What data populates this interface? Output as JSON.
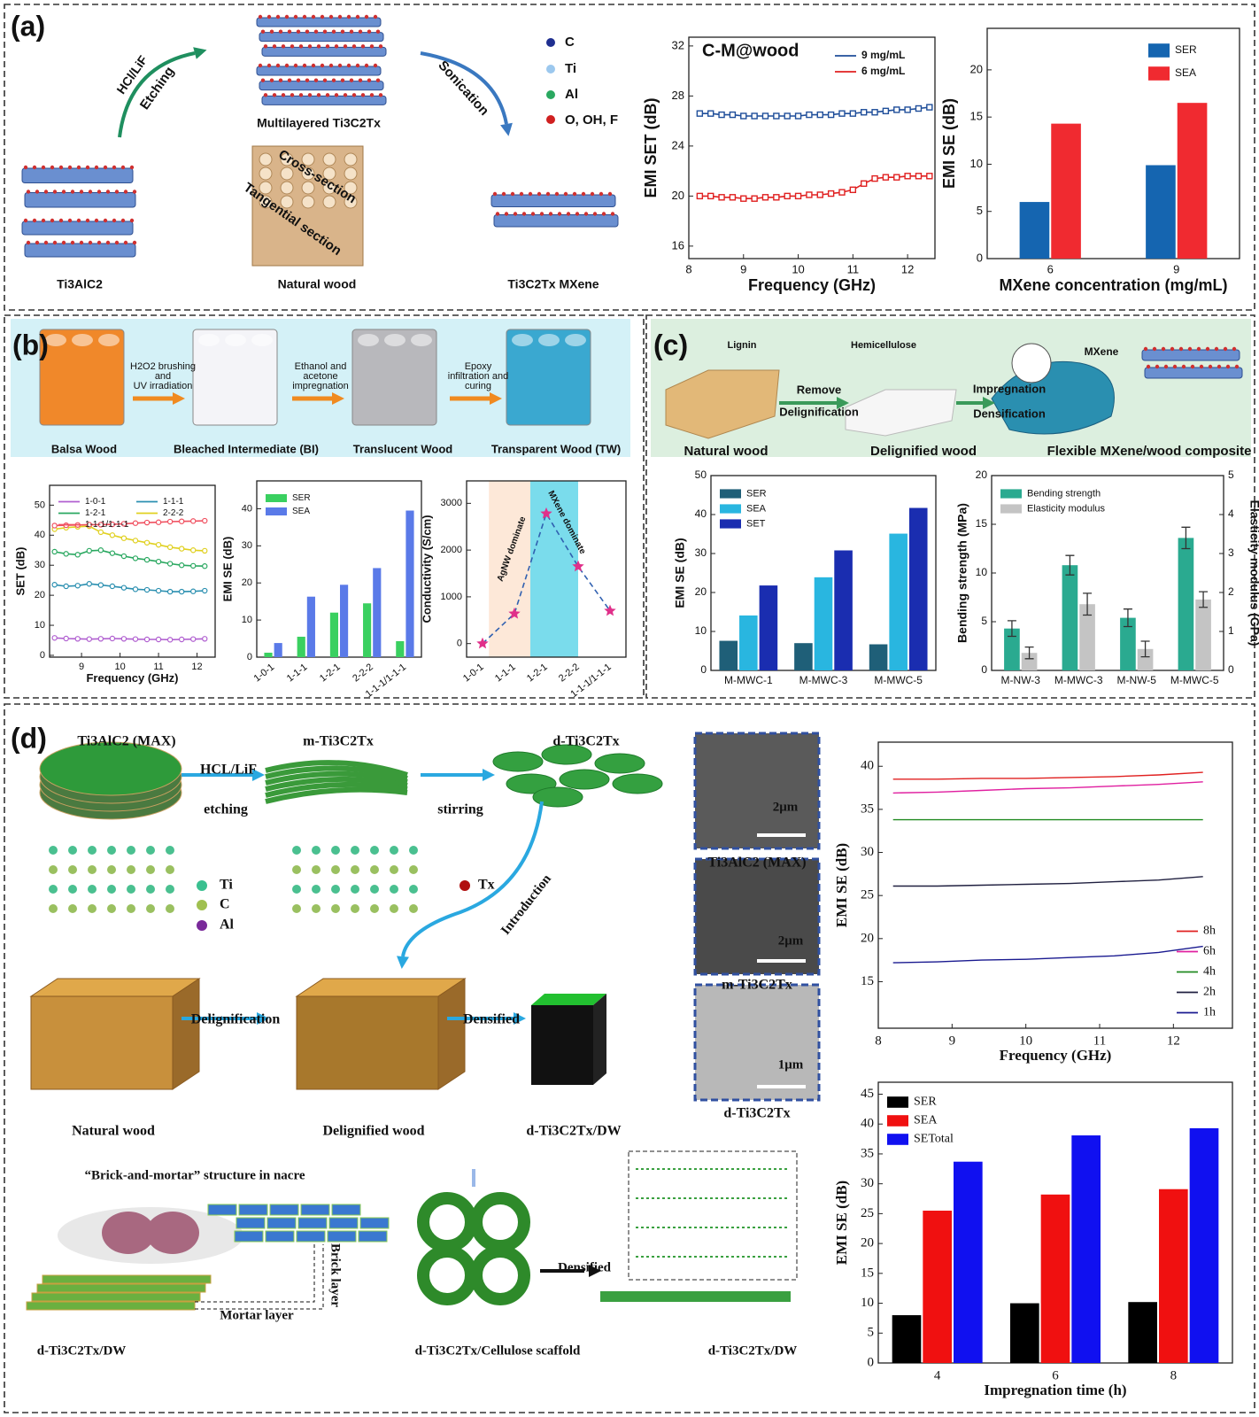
{
  "panels": {
    "a": {
      "label": "(a)",
      "texts": [
        "HCl/LiF",
        "Etching",
        "Multilayered Ti3C2Tx",
        "Sonication",
        "C",
        "Ti",
        "Al",
        "O, OH, F",
        "Ti3AlC2",
        "Cross-section",
        "Tangential section",
        "Natural wood",
        "Ti3C2Tx MXene"
      ]
    },
    "b": {
      "label": "(b)",
      "texts": [
        "H2O2 brushing",
        "and",
        "UV irradiation",
        "Ethanol and",
        "acetone",
        "impregnation",
        "Epoxy",
        "infiltration and",
        "curing",
        "Balsa Wood",
        "Bleached Intermediate (BI)",
        "Translucent Wood",
        "Transparent Wood (TW)"
      ]
    },
    "c": {
      "label": "(c)",
      "texts": [
        "Lignin",
        "Hemicellulose",
        "Remove",
        "Delignification",
        "Impregnation",
        "Densification",
        "MXene",
        "Natural wood",
        "Delignified wood",
        "Flexible MXene/wood composite"
      ]
    },
    "d": {
      "label": "(d)",
      "texts": [
        "Ti3AlC2 (MAX)",
        "m-Ti3C2Tx",
        "d-Ti3C2Tx",
        "HCL/LiF",
        "etching",
        "stirring",
        "Ti",
        "C",
        "Al",
        "Tx",
        "Introduction",
        "Natural wood",
        "Delignification",
        "Delignified wood",
        "Densified",
        "d-Ti3C2Tx/DW",
        "2μm",
        "Ti3AlC2 (MAX)",
        "2μm",
        "m-Ti3C2Tx",
        "1μm",
        "d-Ti3C2Tx",
        "“Brick-and-mortar” structure in nacre",
        "Brick layer",
        "Mortar layer",
        "d-Ti3C2Tx/DW",
        "d-Ti3C2Tx/Cellulose scaffold",
        "Densified",
        "d-Ti3C2Tx/DW"
      ]
    }
  },
  "chart_data": [
    {
      "type": "line",
      "title": "C-M@wood",
      "xlabel": "Frequency (GHz)",
      "ylabel": "EMI SET (dB)",
      "marker": "square",
      "legend": "upper right",
      "x": [
        8.2,
        8.4,
        8.6,
        8.8,
        9.0,
        9.2,
        9.4,
        9.6,
        9.8,
        10.0,
        10.2,
        10.4,
        10.6,
        10.8,
        11.0,
        11.2,
        11.4,
        11.6,
        11.8,
        12.0,
        12.2,
        12.4
      ],
      "xlim": [
        8,
        12.5
      ],
      "xticks": [
        8,
        9,
        10,
        11,
        12
      ],
      "ylim": [
        15,
        32.7
      ],
      "yticks": [
        16,
        20,
        24,
        28,
        32
      ],
      "series": [
        {
          "name": "9 mg/mL",
          "color": "#1f4e9a",
          "values": [
            26.6,
            26.6,
            26.5,
            26.5,
            26.4,
            26.4,
            26.4,
            26.4,
            26.4,
            26.4,
            26.5,
            26.5,
            26.5,
            26.6,
            26.6,
            26.7,
            26.7,
            26.8,
            26.9,
            26.9,
            27.0,
            27.1
          ]
        },
        {
          "name": "6 mg/mL",
          "color": "#e02020",
          "values": [
            20.0,
            20.0,
            19.9,
            19.9,
            19.8,
            19.8,
            19.9,
            19.9,
            20.0,
            20.0,
            20.1,
            20.1,
            20.2,
            20.3,
            20.5,
            21.0,
            21.4,
            21.5,
            21.5,
            21.6,
            21.6,
            21.6
          ]
        }
      ]
    },
    {
      "type": "bar",
      "xlabel": "MXene concentration (mg/mL)",
      "ylabel": "EMI SE (dB)",
      "legend": "upper right",
      "categories": [
        "6",
        "9"
      ],
      "ylim": [
        0,
        24.4
      ],
      "yticks": [
        0,
        5,
        10,
        15,
        20
      ],
      "series": [
        {
          "name": "SER",
          "color": "#1565b0",
          "values": [
            6.0,
            9.9
          ]
        },
        {
          "name": "SEA",
          "color": "#f02a30",
          "values": [
            14.3,
            16.5
          ]
        }
      ]
    },
    {
      "type": "line",
      "xlabel": "Frequency (GHz)",
      "ylabel": "SET (dB)",
      "marker": "circle",
      "legend": "upper left",
      "x": [
        8.3,
        8.6,
        8.9,
        9.2,
        9.5,
        9.8,
        10.1,
        10.4,
        10.7,
        11.0,
        11.3,
        11.6,
        11.9,
        12.2
      ],
      "xlim": [
        8.17,
        12.47
      ],
      "xticks": [
        9,
        10,
        11,
        12
      ],
      "ylim": [
        -0.6,
        56.6
      ],
      "yticks": [
        0,
        10,
        20,
        30,
        40,
        50
      ],
      "series": [
        {
          "name": "1-0-1",
          "color": "#b05fd0",
          "values": [
            5.8,
            5.6,
            5.5,
            5.4,
            5.5,
            5.6,
            5.5,
            5.4,
            5.3,
            5.3,
            5.2,
            5.3,
            5.4,
            5.5
          ]
        },
        {
          "name": "1-1-1",
          "color": "#2a8fb0",
          "values": [
            23.5,
            23.0,
            23.2,
            23.8,
            23.4,
            23.0,
            22.5,
            22.0,
            21.8,
            21.5,
            21.2,
            21.2,
            21.3,
            21.5
          ]
        },
        {
          "name": "1-2-1",
          "color": "#2aa860",
          "values": [
            34.5,
            33.8,
            33.5,
            34.8,
            35.0,
            34.0,
            33.0,
            32.3,
            31.8,
            31.2,
            30.5,
            30.0,
            29.8,
            29.7
          ]
        },
        {
          "name": "2-2-2",
          "color": "#e0d020",
          "values": [
            42.0,
            42.5,
            42.8,
            43.0,
            41.0,
            40.0,
            39.0,
            38.2,
            37.5,
            36.8,
            36.0,
            35.5,
            35.0,
            34.8
          ]
        },
        {
          "name": "1-1-1/1-1-1",
          "color": "#f05060",
          "values": [
            43.2,
            43.3,
            43.4,
            43.5,
            43.5,
            43.6,
            43.8,
            44.0,
            44.2,
            44.3,
            44.5,
            44.6,
            44.7,
            44.8
          ]
        }
      ]
    },
    {
      "type": "bar",
      "ylabel": "EMI SE (dB)",
      "legend": "upper left",
      "categories": [
        "1-0-1",
        "1-1-1",
        "1-2-1",
        "2-2-2",
        "1-1-1/1-1-1"
      ],
      "ylim": [
        0,
        47.5
      ],
      "yticks": [
        0,
        10,
        20,
        30,
        40
      ],
      "series": [
        {
          "name": "SER",
          "color": "#3ad060",
          "values": [
            1.2,
            5.5,
            12,
            14.5,
            4.3
          ]
        },
        {
          "name": "SEA",
          "color": "#5a7ae8",
          "values": [
            3.8,
            16.3,
            19.5,
            24,
            39.5
          ]
        }
      ]
    },
    {
      "type": "line",
      "ylabel": "Conductivity (S/cm)",
      "marker": "star",
      "dashed": true,
      "color": "#e0308a",
      "categories": [
        "1-0-1",
        "1-1-1",
        "1-2-1",
        "2-2-2",
        "1-1-1/1-1-1"
      ],
      "values": [
        0,
        640,
        2780,
        1650,
        700
      ],
      "ylim": [
        -290,
        3480
      ],
      "yticks": [
        0,
        1000,
        2000,
        3000
      ],
      "annotations": [
        "AgNW dominate",
        "MXene dominate"
      ]
    },
    {
      "type": "bar",
      "ylabel": "EMI SE (dB)",
      "legend": "upper left",
      "categories": [
        "M-MWC-1",
        "M-MWC-3",
        "M-MWC-5"
      ],
      "ylim": [
        0,
        50
      ],
      "yticks": [
        0,
        10,
        20,
        30,
        40,
        50
      ],
      "series": [
        {
          "name": "SER",
          "color": "#1f5f78",
          "values": [
            7.6,
            7.0,
            6.7
          ]
        },
        {
          "name": "SEA",
          "color": "#29b6e0",
          "values": [
            14.1,
            23.9,
            35.1
          ]
        },
        {
          "name": "SET",
          "color": "#1a2db0",
          "values": [
            21.8,
            30.8,
            41.7
          ]
        }
      ]
    },
    {
      "type": "bar",
      "ylabel": "Bending strength (MPa)",
      "y2label": "Elasticity modulus (GPa)",
      "legend": "upper left",
      "categories": [
        "M-NW-3",
        "M-MWC-3",
        "M-NW-5",
        "M-MWC-5"
      ],
      "ylim": [
        0,
        20
      ],
      "yticks": [
        0,
        5,
        10,
        15,
        20
      ],
      "y2lim": [
        0,
        5
      ],
      "y2ticks": [
        0,
        1,
        2,
        3,
        4,
        5
      ],
      "series": [
        {
          "name": "Bending strength",
          "color": "#2aaa90",
          "values": [
            4.3,
            10.8,
            5.4,
            13.6
          ],
          "errors": [
            0.8,
            1.0,
            0.9,
            1.1
          ]
        },
        {
          "name": "Elasticity modulus",
          "color": "#c4c4c4",
          "axis": "y2",
          "values": [
            0.45,
            1.7,
            0.55,
            1.82
          ],
          "errors": [
            0.15,
            0.28,
            0.2,
            0.2
          ]
        }
      ]
    },
    {
      "type": "line",
      "xlabel": "Frequency (GHz)",
      "ylabel": "EMI SE (dB)",
      "legend": "lower right",
      "x": [
        8.2,
        8.8,
        9.4,
        10.0,
        10.6,
        11.2,
        11.8,
        12.4
      ],
      "xlim": [
        8,
        12.8
      ],
      "xticks": [
        8,
        9,
        10,
        11,
        12
      ],
      "ylim": [
        9.6,
        42.8
      ],
      "yticks": [
        15,
        20,
        25,
        30,
        35,
        40
      ],
      "series": [
        {
          "name": "8h",
          "color": "#e02020",
          "values": [
            38.5,
            38.5,
            38.6,
            38.6,
            38.7,
            38.8,
            39.0,
            39.3
          ]
        },
        {
          "name": "6h",
          "color": "#e020a0",
          "values": [
            36.9,
            37.0,
            37.2,
            37.4,
            37.5,
            37.7,
            37.9,
            38.2
          ]
        },
        {
          "name": "4h",
          "color": "#208a20",
          "values": [
            33.8,
            33.8,
            33.8,
            33.8,
            33.8,
            33.8,
            33.8,
            33.8
          ]
        },
        {
          "name": "2h",
          "color": "#202040",
          "values": [
            26.1,
            26.1,
            26.2,
            26.3,
            26.4,
            26.6,
            26.8,
            27.2
          ]
        },
        {
          "name": "1h",
          "color": "#1a1a90",
          "values": [
            17.2,
            17.3,
            17.5,
            17.6,
            17.8,
            18.0,
            18.4,
            19.1
          ]
        }
      ]
    },
    {
      "type": "bar",
      "xlabel": "Impregnation time (h)",
      "ylabel": "EMI SE (dB)",
      "legend": "upper left",
      "categories": [
        "4",
        "6",
        "8"
      ],
      "ylim": [
        0,
        47
      ],
      "yticks": [
        0,
        5,
        10,
        15,
        20,
        25,
        30,
        35,
        40,
        45
      ],
      "series": [
        {
          "name": "SER",
          "color": "#000000",
          "values": [
            8,
            10,
            10.2
          ]
        },
        {
          "name": "SEA",
          "color": "#f01010",
          "values": [
            25.5,
            28.2,
            29.1
          ]
        },
        {
          "name": "SETotal",
          "color": "#1010f0",
          "values": [
            33.7,
            38.1,
            39.3
          ]
        }
      ]
    }
  ]
}
